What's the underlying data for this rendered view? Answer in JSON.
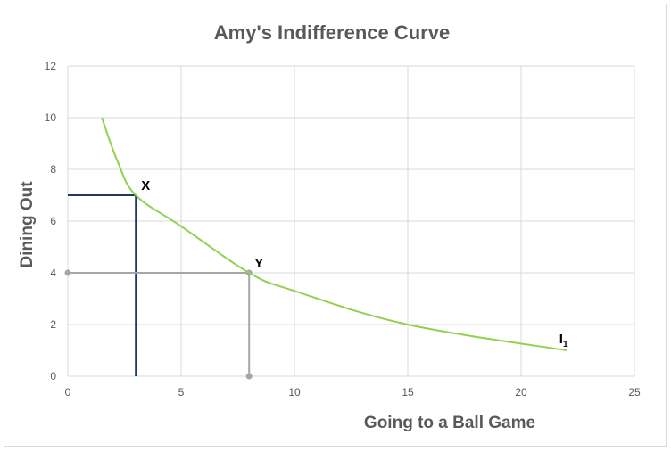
{
  "colors": {
    "curve": "#92d050",
    "grid": "#d9d9d9",
    "x_guide": "#1f3864",
    "y_guide": "#a6a6a6",
    "text": "#595959"
  },
  "chart_data": {
    "type": "line",
    "title": "Amy's Indifference Curve",
    "xlabel": "Going to a Ball Game",
    "ylabel": "Dining Out",
    "xlim": [
      0,
      25
    ],
    "ylim": [
      0,
      12
    ],
    "x_ticks": [
      "0",
      "5",
      "10",
      "15",
      "20",
      "25"
    ],
    "y_ticks": [
      "0",
      "2",
      "4",
      "6",
      "8",
      "10",
      "12"
    ],
    "grid": true,
    "series": [
      {
        "name": "I",
        "name_sub": "1",
        "x": [
          1.5,
          2.2,
          3,
          5,
          8,
          10,
          15,
          22
        ],
        "y": [
          10,
          8.3,
          7,
          5.8,
          4,
          3.3,
          2,
          1
        ]
      }
    ],
    "points": [
      {
        "label": "X",
        "x": 3,
        "y": 7
      },
      {
        "label": "Y",
        "x": 8,
        "y": 4
      }
    ]
  }
}
